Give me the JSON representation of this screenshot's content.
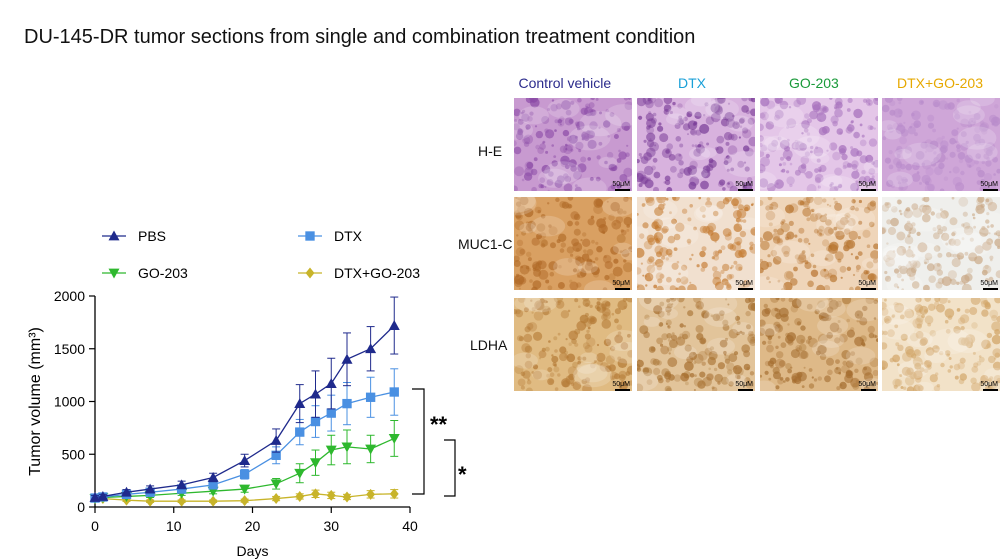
{
  "figure_title": "DU-145-DR tumor sections from single and combination treatment condition",
  "colors": {
    "pbs": "#1f2a8c",
    "dtx": "#4a90e2",
    "go203": "#2eb82e",
    "combo": "#c8b42a",
    "label_control": "#2b2b8c",
    "label_dtx": "#1aa0d8",
    "label_go203": "#1a9a3a",
    "label_combo": "#e6a800"
  },
  "chart_data": {
    "type": "line",
    "title": "",
    "xlabel": "Days",
    "ylabel": "Tumor volume (mm³)",
    "xlim": [
      0,
      40
    ],
    "ylim": [
      0,
      2000
    ],
    "xticks": [
      0,
      10,
      20,
      30,
      40
    ],
    "yticks": [
      0,
      500,
      1000,
      1500,
      2000
    ],
    "legend_position": "top",
    "series": [
      {
        "name": "PBS",
        "marker": "triangle-up",
        "color_key": "pbs",
        "x": [
          0,
          1,
          4,
          7,
          11,
          15,
          19,
          23,
          26,
          28,
          30,
          32,
          35,
          38
        ],
        "y": [
          90,
          100,
          140,
          170,
          210,
          280,
          440,
          630,
          980,
          1070,
          1170,
          1400,
          1500,
          1720
        ],
        "err": [
          20,
          20,
          25,
          30,
          35,
          40,
          60,
          110,
          180,
          220,
          240,
          250,
          210,
          270
        ]
      },
      {
        "name": "DTX",
        "marker": "square",
        "color_key": "dtx",
        "x": [
          0,
          1,
          4,
          7,
          11,
          15,
          19,
          23,
          26,
          28,
          30,
          32,
          35,
          38
        ],
        "y": [
          85,
          95,
          120,
          140,
          170,
          210,
          310,
          490,
          710,
          810,
          890,
          980,
          1040,
          1090
        ],
        "err": [
          15,
          15,
          20,
          25,
          30,
          35,
          45,
          80,
          120,
          150,
          170,
          200,
          190,
          220
        ]
      },
      {
        "name": "GO-203",
        "marker": "triangle-down",
        "color_key": "go203",
        "x": [
          0,
          1,
          4,
          7,
          11,
          15,
          19,
          23,
          26,
          28,
          30,
          32,
          35,
          38
        ],
        "y": [
          80,
          90,
          100,
          110,
          130,
          150,
          170,
          220,
          320,
          420,
          540,
          570,
          550,
          650
        ],
        "err": [
          15,
          15,
          15,
          20,
          20,
          25,
          30,
          50,
          90,
          120,
          140,
          160,
          130,
          170
        ]
      },
      {
        "name": "DTX+GO-203",
        "marker": "diamond",
        "color_key": "combo",
        "x": [
          0,
          1,
          4,
          7,
          11,
          15,
          19,
          23,
          26,
          28,
          30,
          32,
          35,
          38
        ],
        "y": [
          80,
          80,
          65,
          55,
          55,
          55,
          60,
          80,
          100,
          125,
          110,
          95,
          120,
          125
        ],
        "err": [
          15,
          15,
          12,
          12,
          12,
          12,
          15,
          20,
          25,
          35,
          30,
          25,
          35,
          40
        ]
      }
    ],
    "annotations": [
      "**",
      "*"
    ]
  },
  "micrographs": {
    "columns": [
      {
        "label": "Control vehicle",
        "color_key": "label_control"
      },
      {
        "label": "DTX",
        "color_key": "label_dtx"
      },
      {
        "label": "GO-203",
        "color_key": "label_go203"
      },
      {
        "label": "DTX+GO-203",
        "color_key": "label_combo"
      }
    ],
    "rows": [
      {
        "label": "H-E",
        "stain": "he"
      },
      {
        "label": "MUC1-C",
        "stain": "muc"
      },
      {
        "label": "LDHA",
        "stain": "ldha"
      }
    ],
    "scale_label": "50μM"
  }
}
